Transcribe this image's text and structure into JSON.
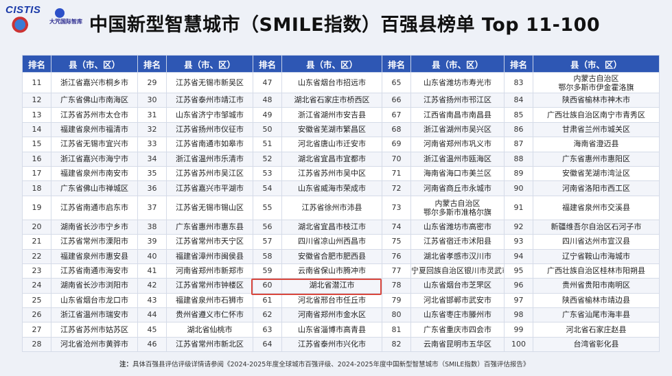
{
  "logo": {
    "text": "CISTIS",
    "partner": "大咒国际智库"
  },
  "title": "中国新型智慧城市（SMILE指数）百强县榜单 Top 11-100",
  "header": {
    "rank": "排名",
    "county": "县（市、区）"
  },
  "rows": [
    [
      [
        "11",
        "浙江省嘉兴市桐乡市"
      ],
      [
        "29",
        "江苏省无锡市新吴区"
      ],
      [
        "47",
        "山东省烟台市招远市"
      ],
      [
        "65",
        "山东省潍坊市寿光市"
      ],
      [
        "83",
        "内蒙古自治区\n鄂尔多斯市伊金霍洛旗"
      ]
    ],
    [
      [
        "12",
        "广东省佛山市南海区"
      ],
      [
        "30",
        "江苏省泰州市靖江市"
      ],
      [
        "48",
        "湖北省石家庄市桥西区"
      ],
      [
        "66",
        "江苏省扬州市邗江区"
      ],
      [
        "84",
        "陕西省榆林市神木市"
      ]
    ],
    [
      [
        "13",
        "江苏省苏州市太仓市"
      ],
      [
        "31",
        "山东省济宁市邹城市"
      ],
      [
        "49",
        "浙江省湖州市安吉县"
      ],
      [
        "67",
        "江西省南昌市南昌县"
      ],
      [
        "85",
        "广西壮族自治区南宁市青秀区"
      ]
    ],
    [
      [
        "14",
        "福建省泉州市福清市"
      ],
      [
        "32",
        "江苏省扬州市仪征市"
      ],
      [
        "50",
        "安徽省芜湖市繁昌区"
      ],
      [
        "68",
        "浙江省湖州市吴兴区"
      ],
      [
        "86",
        "甘肃省兰州市城关区"
      ]
    ],
    [
      [
        "15",
        "江苏省无锡市宜兴市"
      ],
      [
        "33",
        "江苏省南通市如皋市"
      ],
      [
        "51",
        "河北省唐山市迁安市"
      ],
      [
        "69",
        "河南省郑州市巩义市"
      ],
      [
        "87",
        "海南省澄迈县"
      ]
    ],
    [
      [
        "16",
        "浙江省嘉兴市海宁市"
      ],
      [
        "34",
        "浙江省温州市乐清市"
      ],
      [
        "52",
        "湖北省宜昌市宜都市"
      ],
      [
        "70",
        "浙江省温州市瓯海区"
      ],
      [
        "88",
        "广东省惠州市惠阳区"
      ]
    ],
    [
      [
        "17",
        "福建省泉州市南安市"
      ],
      [
        "35",
        "江苏省苏州市吴江区"
      ],
      [
        "53",
        "江苏省苏州市吴中区"
      ],
      [
        "71",
        "海南省海口市美兰区"
      ],
      [
        "89",
        "安徽省芜湖市湾沚区"
      ]
    ],
    [
      [
        "18",
        "广东省佛山市禅城区"
      ],
      [
        "36",
        "江苏省嘉兴市平湖市"
      ],
      [
        "54",
        "山东省威海市荣成市"
      ],
      [
        "72",
        "河南省商丘市永城市"
      ],
      [
        "90",
        "河南省洛阳市西工区"
      ]
    ],
    [
      [
        "19",
        "江苏省南通市启东市"
      ],
      [
        "37",
        "江苏省无锡市锡山区"
      ],
      [
        "55",
        "江苏省徐州市沛县"
      ],
      [
        "73",
        "内蒙古自治区\n鄂尔多斯市准格尔旗"
      ],
      [
        "91",
        "福建省泉州市交溪县"
      ]
    ],
    [
      [
        "20",
        "湖南省长沙市宁乡市"
      ],
      [
        "38",
        "广东省惠州市惠东县"
      ],
      [
        "56",
        "湖北省宜昌市枝江市"
      ],
      [
        "74",
        "山东省潍坊市高密市"
      ],
      [
        "92",
        "新疆维吾尔自治区石河子市"
      ]
    ],
    [
      [
        "21",
        "江苏省常州市溧阳市"
      ],
      [
        "39",
        "江苏省常州市天宁区"
      ],
      [
        "57",
        "四川省凉山州西昌市"
      ],
      [
        "75",
        "江苏省宿迁市沭阳县"
      ],
      [
        "93",
        "四川省达州市宣汉县"
      ]
    ],
    [
      [
        "22",
        "福建省泉州市惠安县"
      ],
      [
        "40",
        "福建省漳州市闽侯县"
      ],
      [
        "58",
        "安徽省合肥市肥西县"
      ],
      [
        "76",
        "湖北省孝感市汉川市"
      ],
      [
        "94",
        "辽宁省鞍山市海城市"
      ]
    ],
    [
      [
        "23",
        "江苏省南通市海安市"
      ],
      [
        "41",
        "河南省郑州市新郑市"
      ],
      [
        "59",
        "云南省保山市腾冲市"
      ],
      [
        "77",
        "宁夏回族自治区银川市灵武市"
      ],
      [
        "95",
        "广西壮族自治区桂林市阳朔县"
      ]
    ],
    [
      [
        "24",
        "湖南省长沙市浏阳市"
      ],
      [
        "42",
        "江苏省常州市钟楼区"
      ],
      [
        "60",
        "湖北省潜江市"
      ],
      [
        "78",
        "山东省烟台市芝罘区"
      ],
      [
        "96",
        "贵州省贵阳市南明区"
      ]
    ],
    [
      [
        "25",
        "山东省烟台市龙口市"
      ],
      [
        "43",
        "福建省泉州市石狮市"
      ],
      [
        "61",
        "河北省邢台市任丘市"
      ],
      [
        "79",
        "河北省邯郸市武安市"
      ],
      [
        "97",
        "陕西省榆林市靖边县"
      ]
    ],
    [
      [
        "26",
        "浙江省温州市瑞安市"
      ],
      [
        "44",
        "贵州省遵义市仁怀市"
      ],
      [
        "62",
        "河南省郑州市金水区"
      ],
      [
        "80",
        "山东省枣庄市滕州市"
      ],
      [
        "98",
        "广东省汕尾市海丰县"
      ]
    ],
    [
      [
        "27",
        "江苏省苏州市姑苏区"
      ],
      [
        "45",
        "湖北省仙桃市"
      ],
      [
        "63",
        "山东省淄博市高青县"
      ],
      [
        "81",
        "广东省重庆市四会市"
      ],
      [
        "99",
        "河北省石家庄赵县"
      ]
    ],
    [
      [
        "28",
        "河北省沧州市黄骅市"
      ],
      [
        "46",
        "江苏省常州市新北区"
      ],
      [
        "64",
        "江苏省泰州市兴化市"
      ],
      [
        "82",
        "云南省昆明市五华区"
      ],
      [
        "100",
        "台湾省彰化县"
      ]
    ]
  ],
  "note_label": "注：",
  "note": "具体百强县评估评级详情请参阅《2024-2025年度全球城市百强评级、2024-2025年度中国新型智慧城市（SMILE指数）百强评估报告》",
  "colors": {
    "header_bg": "#2e57b4",
    "highlight": "#d9463c"
  }
}
